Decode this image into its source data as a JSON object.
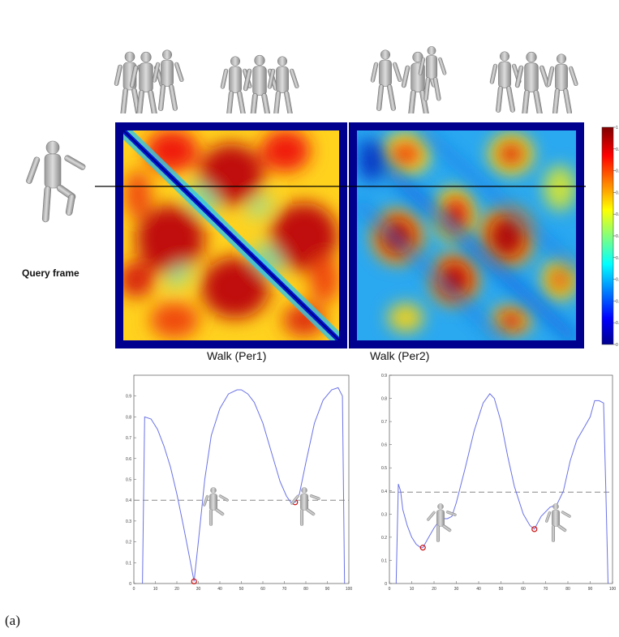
{
  "figure": {
    "panel_label": "(a)",
    "query_label": "Query frame",
    "heatmap_labels": [
      "Walk (Per1)",
      "Walk (Per2)"
    ],
    "colorbar_ticks": [
      "0",
      "0.1",
      "0.2",
      "0.3",
      "0.4",
      "0.5",
      "0.6",
      "0.7",
      "0.8",
      "0.9",
      "1"
    ]
  },
  "chart_data": [
    {
      "type": "heatmap",
      "xlabel": "Walk (Per1)",
      "colorscale": "jet",
      "range": [
        0,
        1
      ],
      "description_values": "self-similarity: low (blue) on main diagonal, periodic red blobs"
    },
    {
      "type": "heatmap",
      "xlabel": "Walk (Per2)",
      "colorscale": "jet",
      "range": [
        0,
        1
      ]
    },
    {
      "type": "line",
      "xlim": [
        0,
        100
      ],
      "ylim": [
        0,
        1
      ],
      "xticks": [
        "0",
        "10",
        "20",
        "30",
        "40",
        "50",
        "60",
        "70",
        "80",
        "90",
        "100"
      ],
      "yticks": [
        "0",
        "0.1",
        "0.2",
        "0.3",
        "0.4",
        "0.5",
        "0.6",
        "0.7",
        "0.8",
        "0.9"
      ],
      "threshold": 0.4,
      "series": [
        {
          "x": [
            4,
            5,
            8,
            11,
            14,
            17,
            20,
            23,
            26,
            28,
            30,
            33,
            36,
            40,
            44,
            48,
            50,
            53,
            56,
            60,
            64,
            68,
            71,
            73,
            75,
            77,
            80,
            84,
            88,
            92,
            95,
            97,
            98
          ],
          "y": [
            0,
            0.8,
            0.79,
            0.74,
            0.66,
            0.56,
            0.43,
            0.28,
            0.12,
            0.01,
            0.2,
            0.5,
            0.71,
            0.84,
            0.91,
            0.93,
            0.93,
            0.91,
            0.87,
            0.77,
            0.63,
            0.49,
            0.42,
            0.39,
            0.39,
            0.43,
            0.58,
            0.77,
            0.88,
            0.93,
            0.94,
            0.9,
            0
          ]
        }
      ],
      "minima": [
        {
          "x": 28,
          "y": 0.01
        },
        {
          "x": 75,
          "y": 0.39
        }
      ]
    },
    {
      "type": "line",
      "xlim": [
        0,
        100
      ],
      "ylim": [
        0,
        0.9
      ],
      "xticks": [
        "0",
        "10",
        "20",
        "30",
        "40",
        "50",
        "60",
        "70",
        "80",
        "90",
        "100"
      ],
      "yticks": [
        "0",
        "0.1",
        "0.2",
        "0.3",
        "0.4",
        "0.5",
        "0.6",
        "0.7",
        "0.8",
        "0.9"
      ],
      "threshold": 0.395,
      "series": [
        {
          "x": [
            3,
            4,
            5,
            6,
            8,
            10,
            12,
            14,
            15,
            17,
            20,
            23,
            26,
            28,
            30,
            34,
            38,
            42,
            45,
            47,
            50,
            53,
            56,
            60,
            63,
            65,
            68,
            72,
            75,
            78,
            81,
            84,
            87,
            90,
            92,
            94,
            96,
            97,
            98
          ],
          "y": [
            0,
            0.43,
            0.4,
            0.32,
            0.25,
            0.2,
            0.17,
            0.155,
            0.155,
            0.19,
            0.24,
            0.28,
            0.28,
            0.29,
            0.35,
            0.5,
            0.66,
            0.78,
            0.82,
            0.8,
            0.7,
            0.55,
            0.42,
            0.3,
            0.25,
            0.235,
            0.29,
            0.33,
            0.34,
            0.4,
            0.53,
            0.62,
            0.67,
            0.72,
            0.79,
            0.79,
            0.78,
            0.4,
            0
          ]
        }
      ],
      "minima": [
        {
          "x": 15,
          "y": 0.155
        },
        {
          "x": 65,
          "y": 0.235
        }
      ]
    }
  ]
}
